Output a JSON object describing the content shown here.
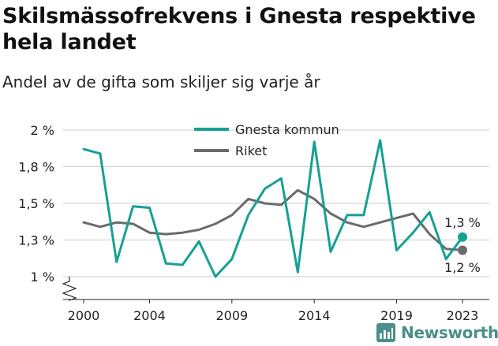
{
  "title": "Skilsmässofrekvens i Gnesta respektive hela landet",
  "subtitle": "Andel av de gifta som skiljer sig varje år",
  "brand": "Newsworthy",
  "colors": {
    "gnesta": "#16a094",
    "riket": "#6b6b6b",
    "grid": "#cccccc",
    "brand": "#4a8f8a"
  },
  "chart_data": {
    "type": "line",
    "x": [
      2000,
      2001,
      2002,
      2003,
      2004,
      2005,
      2006,
      2007,
      2008,
      2009,
      2010,
      2011,
      2012,
      2013,
      2014,
      2015,
      2016,
      2017,
      2018,
      2019,
      2020,
      2021,
      2022,
      2023
    ],
    "series": [
      {
        "name": "Gnesta kommun",
        "values": [
          1.87,
          1.84,
          1.1,
          1.48,
          1.47,
          1.09,
          1.08,
          1.24,
          1.0,
          1.12,
          1.42,
          1.6,
          1.67,
          1.03,
          1.92,
          1.17,
          1.42,
          1.42,
          1.93,
          1.18,
          1.3,
          1.44,
          1.12,
          1.27
        ]
      },
      {
        "name": "Riket",
        "values": [
          1.37,
          1.34,
          1.37,
          1.36,
          1.3,
          1.29,
          1.3,
          1.32,
          1.36,
          1.42,
          1.53,
          1.5,
          1.49,
          1.59,
          1.53,
          1.43,
          1.37,
          1.34,
          1.37,
          1.4,
          1.43,
          1.29,
          1.19,
          1.18
        ]
      }
    ],
    "y_ticks": [
      1.0,
      1.25,
      1.5,
      1.75,
      2.0
    ],
    "y_tick_labels": [
      "1 %",
      "1,3 %",
      "1,5 %",
      "1,8 %",
      "2 %"
    ],
    "x_ticks": [
      2000,
      2004,
      2009,
      2014,
      2019,
      2023
    ],
    "x_tick_labels": [
      "2000",
      "2004",
      "2009",
      "2014",
      "2019",
      "2023"
    ],
    "ylim": [
      1.0,
      2.0
    ],
    "end_labels": [
      "1,3 %",
      "1,2 %"
    ],
    "grid": true,
    "legend": "top"
  }
}
